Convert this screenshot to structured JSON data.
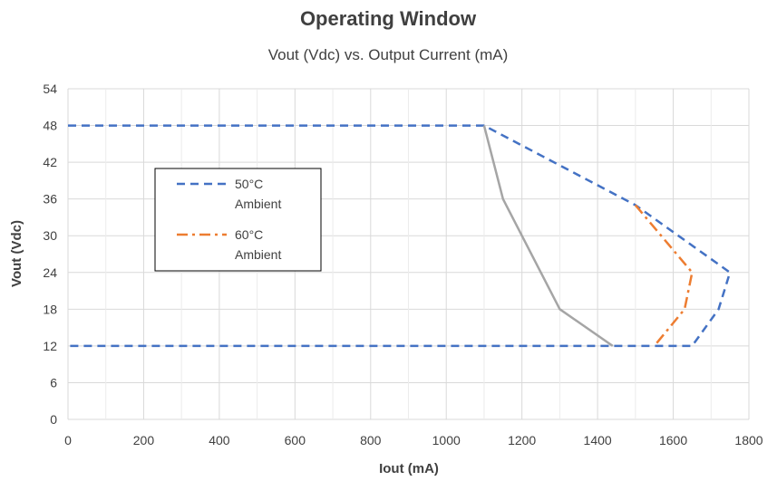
{
  "chart_data": {
    "type": "line",
    "title": "Operating Window",
    "subtitle": "Vout (Vdc) vs. Output Current (mA)",
    "xlabel": "Iout (mA)",
    "ylabel": "Vout (Vdc)",
    "xlim": [
      0,
      1800
    ],
    "ylim": [
      0,
      54
    ],
    "xticks": [
      0,
      200,
      400,
      600,
      800,
      1000,
      1200,
      1400,
      1600,
      1800
    ],
    "yticks": [
      0,
      6,
      12,
      18,
      24,
      30,
      36,
      42,
      48,
      54
    ],
    "xtick_labels": [
      "0",
      "200",
      "400",
      "600",
      "800",
      "1000",
      "1200",
      "1400",
      "1600",
      "1800"
    ],
    "ytick_labels": [
      "0",
      "6",
      "12",
      "18",
      "24",
      "30",
      "36",
      "42",
      "48",
      "54"
    ],
    "grid": true,
    "legend_position": "left",
    "series": [
      {
        "name": "50°C Ambient",
        "name_lines": [
          "50°C",
          "Ambient"
        ],
        "color": "#4472C4",
        "dash": "dash",
        "in_legend": true,
        "points": [
          [
            0,
            48
          ],
          [
            1100,
            48
          ],
          [
            1500,
            35
          ],
          [
            1750,
            24
          ],
          [
            1720,
            18
          ],
          [
            1650,
            12
          ],
          [
            0,
            12
          ]
        ]
      },
      {
        "name": "60°C Ambient",
        "name_lines": [
          "60°C",
          "Ambient"
        ],
        "color": "#ED7D31",
        "dash": "dashdot",
        "in_legend": true,
        "points": [
          [
            1500,
            35
          ],
          [
            1650,
            24
          ],
          [
            1630,
            18
          ],
          [
            1550,
            12
          ]
        ]
      },
      {
        "name": "",
        "name_lines": [],
        "color": "#A5A5A5",
        "dash": "solid",
        "in_legend": false,
        "points": [
          [
            1100,
            48
          ],
          [
            1150,
            36
          ],
          [
            1300,
            18
          ],
          [
            1440,
            12
          ]
        ]
      }
    ]
  }
}
